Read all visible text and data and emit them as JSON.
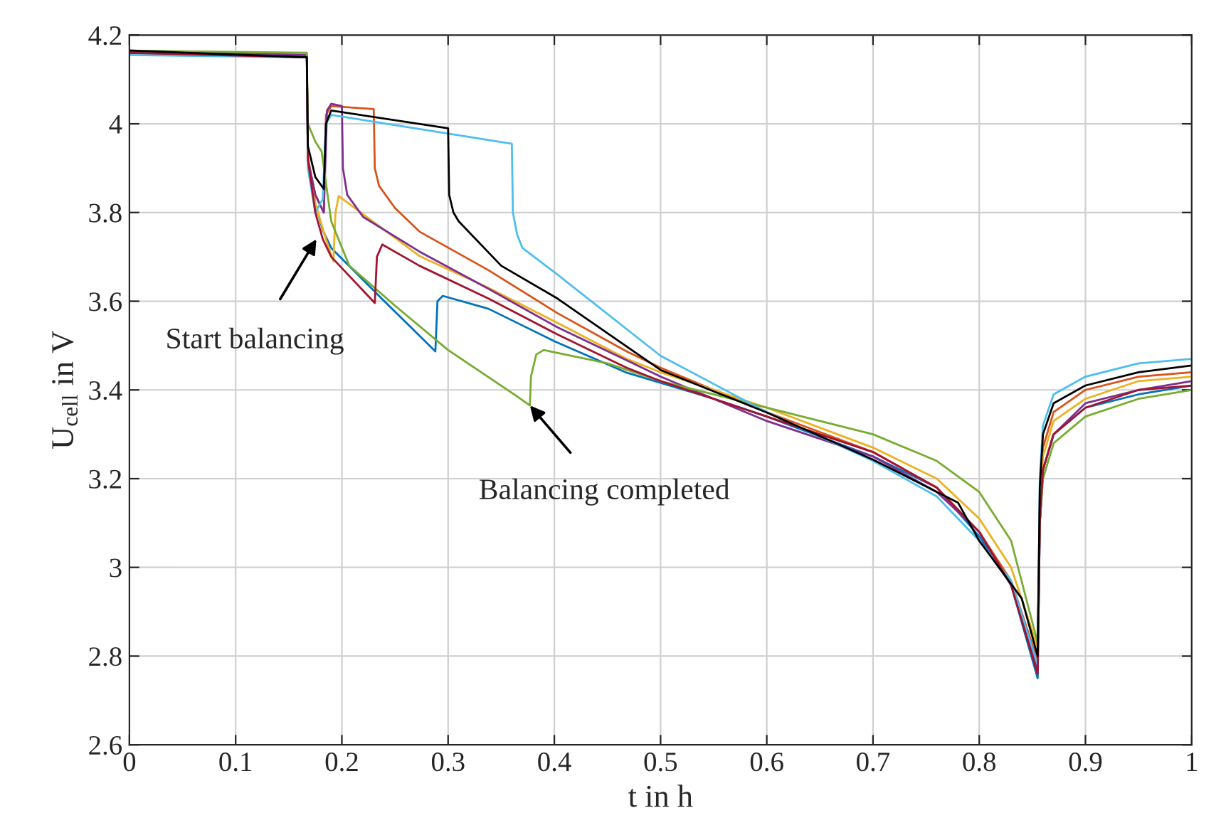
{
  "chart_data": {
    "type": "line",
    "xlabel": "t in h",
    "ylabel": "U$_{cell}$ in V",
    "xlim": [
      0,
      1
    ],
    "ylim": [
      2.6,
      4.2
    ],
    "xticks": [
      0,
      0.1,
      0.2,
      0.3,
      0.4,
      0.5,
      0.6,
      0.7,
      0.8,
      0.9,
      1
    ],
    "yticks": [
      2.6,
      2.8,
      3,
      3.2,
      3.4,
      3.6,
      3.8,
      4,
      4.2
    ],
    "grid": true,
    "line_style": "solid",
    "annotations": [
      {
        "text": "Start balancing",
        "x": 0.176,
        "y": 3.74
      },
      {
        "text": "Balancing completed",
        "x": 0.377,
        "y": 3.365
      }
    ],
    "series": [
      {
        "color": "#0072bd",
        "x": [
          0,
          0.167,
          0.168,
          0.175,
          0.182,
          0.19,
          0.24,
          0.288,
          0.29,
          0.295,
          0.338,
          0.4,
          0.468,
          0.55,
          0.6,
          0.7,
          0.76,
          0.8,
          0.83,
          0.855,
          0.857,
          0.86,
          0.87,
          0.9,
          0.95,
          1.0
        ],
        "values": [
          4.16,
          4.15,
          3.92,
          3.82,
          3.76,
          3.72,
          3.6,
          3.487,
          3.6,
          3.612,
          3.583,
          3.51,
          3.439,
          3.38,
          3.34,
          3.25,
          3.18,
          3.07,
          2.96,
          2.75,
          3.1,
          3.22,
          3.3,
          3.36,
          3.39,
          3.41
        ]
      },
      {
        "color": "#d95319",
        "x": [
          0,
          0.167,
          0.168,
          0.175,
          0.183,
          0.185,
          0.19,
          0.23,
          0.231,
          0.235,
          0.25,
          0.273,
          0.338,
          0.403,
          0.468,
          0.5,
          0.6,
          0.7,
          0.76,
          0.8,
          0.83,
          0.855,
          0.857,
          0.86,
          0.87,
          0.9,
          0.95,
          1.0
        ],
        "values": [
          4.165,
          4.155,
          3.92,
          3.84,
          3.8,
          4.02,
          4.04,
          4.033,
          3.9,
          3.86,
          3.81,
          3.757,
          3.67,
          3.573,
          3.487,
          3.45,
          3.35,
          3.26,
          3.18,
          3.08,
          2.97,
          2.79,
          3.15,
          3.27,
          3.35,
          3.4,
          3.43,
          3.44
        ]
      },
      {
        "color": "#edb120",
        "x": [
          0,
          0.167,
          0.168,
          0.175,
          0.185,
          0.192,
          0.194,
          0.197,
          0.273,
          0.338,
          0.403,
          0.468,
          0.5,
          0.6,
          0.7,
          0.76,
          0.8,
          0.83,
          0.855,
          0.857,
          0.86,
          0.87,
          0.9,
          0.95,
          1.0
        ],
        "values": [
          4.165,
          4.155,
          3.93,
          3.82,
          3.74,
          3.69,
          3.8,
          3.837,
          3.702,
          3.63,
          3.551,
          3.47,
          3.44,
          3.36,
          3.27,
          3.2,
          3.11,
          3.0,
          2.82,
          3.12,
          3.25,
          3.33,
          3.38,
          3.42,
          3.43
        ]
      },
      {
        "color": "#7e2f8e",
        "x": [
          0,
          0.167,
          0.168,
          0.175,
          0.183,
          0.186,
          0.19,
          0.2,
          0.201,
          0.205,
          0.22,
          0.273,
          0.338,
          0.403,
          0.468,
          0.5,
          0.6,
          0.7,
          0.76,
          0.8,
          0.83,
          0.855,
          0.857,
          0.86,
          0.87,
          0.9,
          0.95,
          1.0
        ],
        "values": [
          4.165,
          4.155,
          3.92,
          3.84,
          3.8,
          4.03,
          4.045,
          4.04,
          3.9,
          3.84,
          3.79,
          3.712,
          3.628,
          3.541,
          3.467,
          3.43,
          3.33,
          3.25,
          3.17,
          3.08,
          2.96,
          2.77,
          3.1,
          3.22,
          3.3,
          3.37,
          3.4,
          3.42
        ]
      },
      {
        "color": "#77ac30",
        "x": [
          0,
          0.167,
          0.168,
          0.175,
          0.181,
          0.19,
          0.207,
          0.25,
          0.3,
          0.364,
          0.377,
          0.378,
          0.383,
          0.39,
          0.45,
          0.5,
          0.6,
          0.7,
          0.76,
          0.8,
          0.83,
          0.855,
          0.857,
          0.86,
          0.87,
          0.9,
          0.95,
          1.0
        ],
        "values": [
          4.165,
          4.16,
          4.0,
          3.96,
          3.937,
          3.78,
          3.68,
          3.59,
          3.49,
          3.387,
          3.365,
          3.43,
          3.48,
          3.49,
          3.46,
          3.42,
          3.36,
          3.3,
          3.24,
          3.17,
          3.06,
          2.83,
          3.1,
          3.2,
          3.28,
          3.34,
          3.38,
          3.4
        ]
      },
      {
        "color": "#4dbeee",
        "x": [
          0,
          0.167,
          0.168,
          0.175,
          0.182,
          0.185,
          0.19,
          0.36,
          0.361,
          0.365,
          0.37,
          0.403,
          0.5,
          0.6,
          0.7,
          0.76,
          0.8,
          0.83,
          0.855,
          0.857,
          0.86,
          0.87,
          0.9,
          0.95,
          1.0
        ],
        "values": [
          4.155,
          4.15,
          3.9,
          3.8,
          3.83,
          4.0,
          4.02,
          3.955,
          3.8,
          3.75,
          3.72,
          3.66,
          3.477,
          3.35,
          3.24,
          3.16,
          3.06,
          2.97,
          2.78,
          3.2,
          3.32,
          3.39,
          3.43,
          3.46,
          3.47
        ]
      },
      {
        "color": "#a2142f",
        "x": [
          0,
          0.167,
          0.168,
          0.175,
          0.182,
          0.19,
          0.231,
          0.233,
          0.238,
          0.273,
          0.338,
          0.403,
          0.468,
          0.5,
          0.6,
          0.7,
          0.76,
          0.8,
          0.83,
          0.855,
          0.857,
          0.86,
          0.87,
          0.9,
          0.95,
          1.0
        ],
        "values": [
          4.16,
          4.15,
          3.92,
          3.8,
          3.74,
          3.7,
          3.596,
          3.7,
          3.728,
          3.68,
          3.606,
          3.525,
          3.45,
          3.42,
          3.34,
          3.26,
          3.18,
          3.08,
          2.96,
          2.76,
          3.1,
          3.22,
          3.3,
          3.36,
          3.4,
          3.41
        ]
      },
      {
        "color": "#000000",
        "x": [
          0,
          0.167,
          0.168,
          0.175,
          0.183,
          0.185,
          0.19,
          0.3,
          0.301,
          0.305,
          0.31,
          0.35,
          0.403,
          0.5,
          0.6,
          0.7,
          0.78,
          0.8,
          0.84,
          0.855,
          0.857,
          0.86,
          0.87,
          0.9,
          0.95,
          1.0
        ],
        "values": [
          4.165,
          4.15,
          3.95,
          3.88,
          3.853,
          4.0,
          4.03,
          3.99,
          3.84,
          3.8,
          3.78,
          3.68,
          3.606,
          3.445,
          3.349,
          3.243,
          3.146,
          3.06,
          2.93,
          2.8,
          3.18,
          3.3,
          3.37,
          3.41,
          3.44,
          3.455
        ]
      }
    ]
  }
}
